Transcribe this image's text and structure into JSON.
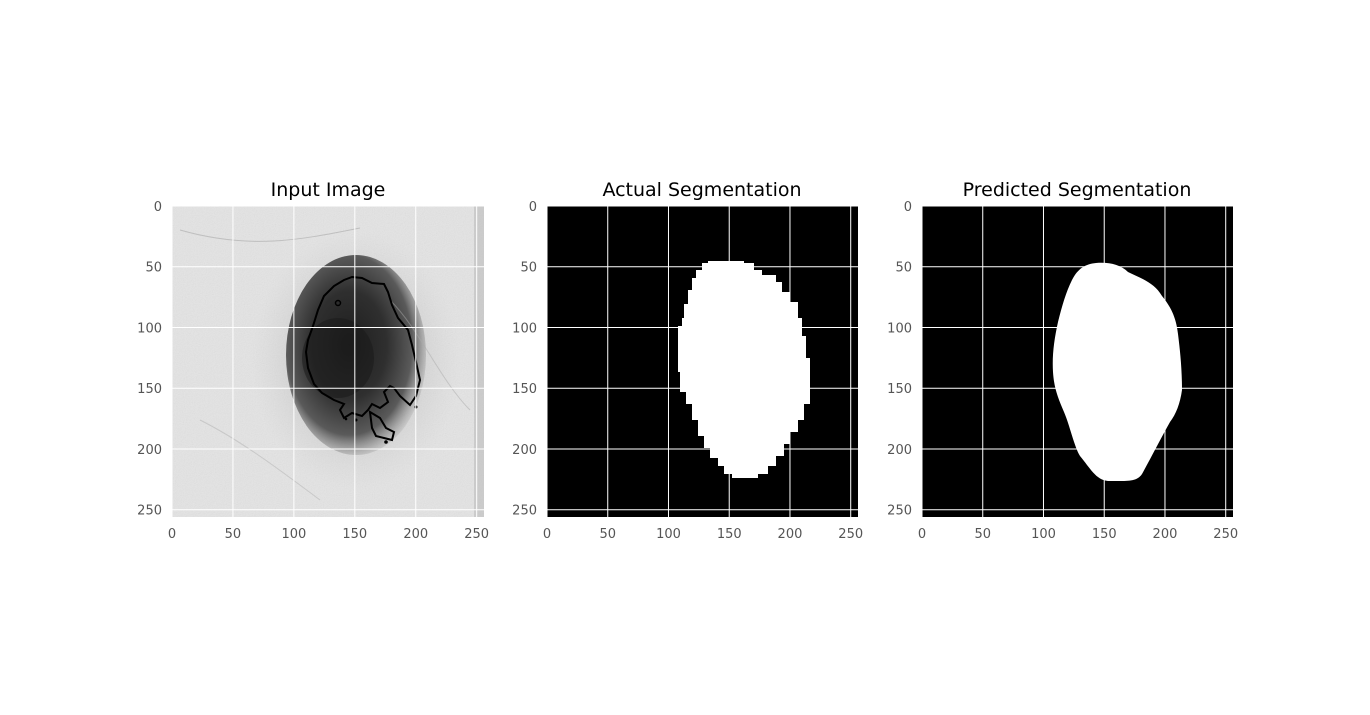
{
  "panels": [
    {
      "id": "input",
      "title": "Input Image",
      "kind": "photo_with_contour",
      "contour_color": "#000000"
    },
    {
      "id": "actual",
      "title": "Actual Segmentation",
      "kind": "mask",
      "mask_style": "pixelated"
    },
    {
      "id": "predicted",
      "title": "Predicted Segmentation",
      "kind": "mask",
      "mask_style": "smooth"
    }
  ],
  "axes": {
    "xlim": [
      0,
      256
    ],
    "ylim": [
      256,
      0
    ],
    "xticks": [
      0,
      50,
      100,
      150,
      200,
      250
    ],
    "yticks": [
      0,
      50,
      100,
      150,
      200,
      250
    ],
    "grid": true,
    "tick_color": "#555555",
    "grid_color": "#ffffff"
  },
  "colors": {
    "mask_background": "#000000",
    "mask_foreground": "#ffffff",
    "skin_light": "#e2e2e2",
    "lesion_dark": "#2a2a2a"
  }
}
